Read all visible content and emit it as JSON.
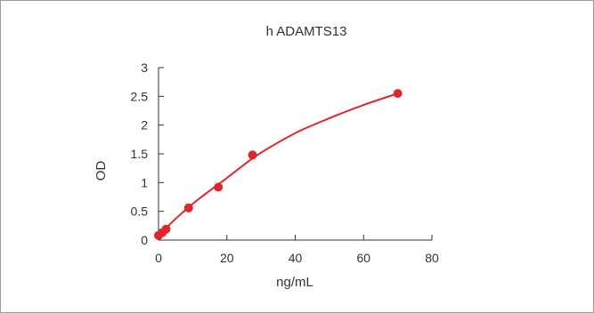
{
  "chart_data": {
    "type": "line",
    "title": "h  ADAMTS13",
    "xlabel": "ng/mL",
    "ylabel": "OD",
    "xlim": [
      0,
      80
    ],
    "ylim": [
      0,
      3
    ],
    "xticks": [
      0,
      20,
      40,
      60,
      80
    ],
    "yticks": [
      0,
      0.5,
      1,
      1.5,
      2,
      2.5,
      3
    ],
    "xtick_labels": [
      "0",
      "20",
      "40",
      "60",
      "80"
    ],
    "ytick_labels": [
      "0",
      "0.5",
      "1",
      "1.5",
      "2",
      "2.5",
      "3"
    ],
    "grid": false,
    "legend": "none",
    "series": [
      {
        "color": "#e0262b",
        "points": [
          {
            "x": 0,
            "y": 0.08
          },
          {
            "x": 1.1,
            "y": 0.13
          },
          {
            "x": 2.2,
            "y": 0.19
          },
          {
            "x": 8.8,
            "y": 0.56
          },
          {
            "x": 17.5,
            "y": 0.92
          },
          {
            "x": 27.5,
            "y": 1.48
          },
          {
            "x": 70,
            "y": 2.55
          }
        ],
        "curve": [
          {
            "x": 0,
            "y": 0.08
          },
          {
            "x": 5,
            "y": 0.37
          },
          {
            "x": 10,
            "y": 0.63
          },
          {
            "x": 15,
            "y": 0.86
          },
          {
            "x": 20,
            "y": 1.08
          },
          {
            "x": 25,
            "y": 1.31
          },
          {
            "x": 30,
            "y": 1.52
          },
          {
            "x": 40,
            "y": 1.86
          },
          {
            "x": 50,
            "y": 2.12
          },
          {
            "x": 60,
            "y": 2.35
          },
          {
            "x": 70,
            "y": 2.55
          }
        ]
      }
    ]
  }
}
